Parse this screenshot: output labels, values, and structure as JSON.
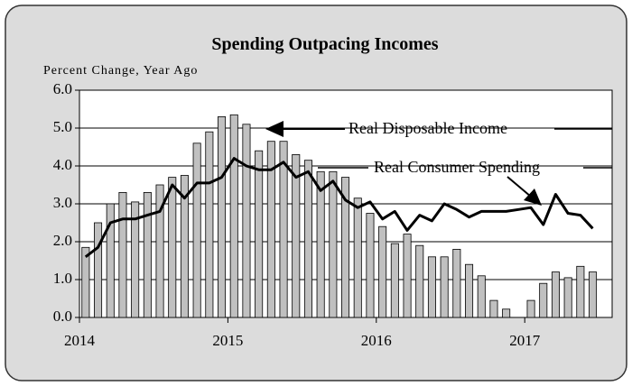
{
  "chart_data": {
    "type": "bar-line",
    "title": "Spending Outpacing Incomes",
    "y_axis_label": "Percent Change, Year Ago",
    "categories": [
      "2014",
      null,
      null,
      null,
      null,
      null,
      null,
      null,
      null,
      null,
      null,
      null,
      "2015",
      null,
      null,
      null,
      null,
      null,
      null,
      null,
      null,
      null,
      null,
      null,
      "2016",
      null,
      null,
      null,
      null,
      null,
      null,
      null,
      null,
      null,
      null,
      null,
      "2017",
      null,
      null,
      null,
      null,
      null
    ],
    "series": [
      {
        "name": "Real Disposable Income",
        "type": "bar",
        "color": "#c0c0c0",
        "values": [
          1.85,
          2.5,
          3.0,
          3.3,
          3.05,
          3.3,
          3.5,
          3.7,
          3.75,
          4.6,
          4.9,
          5.3,
          5.35,
          5.1,
          4.4,
          4.65,
          4.65,
          4.3,
          4.15,
          3.85,
          3.85,
          3.7,
          3.15,
          2.75,
          2.4,
          1.95,
          2.2,
          1.9,
          1.6,
          1.6,
          1.8,
          1.4,
          1.1,
          0.45,
          0.22,
          0.0,
          0.45,
          0.9,
          1.2,
          1.05,
          1.35,
          1.2
        ]
      },
      {
        "name": "Real Consumer Spending",
        "type": "line",
        "color": "#000000",
        "values": [
          1.6,
          1.85,
          2.5,
          2.6,
          2.6,
          2.7,
          2.8,
          3.5,
          3.15,
          3.55,
          3.55,
          3.7,
          4.2,
          4.0,
          3.9,
          3.9,
          4.1,
          3.7,
          3.85,
          3.35,
          3.6,
          3.1,
          2.9,
          3.05,
          2.6,
          2.8,
          2.3,
          2.7,
          2.55,
          3.0,
          2.85,
          2.65,
          2.8,
          2.8,
          2.8,
          2.85,
          2.9,
          2.45,
          3.25,
          2.75,
          2.7,
          2.35
        ]
      }
    ],
    "ylim": [
      0,
      6
    ],
    "yticks": [
      {
        "value": 0,
        "label": "0.0"
      },
      {
        "value": 1,
        "label": "1.0"
      },
      {
        "value": 2,
        "label": "2.0"
      },
      {
        "value": 3,
        "label": "3.0"
      },
      {
        "value": 4,
        "label": "4.0"
      },
      {
        "value": 5,
        "label": "5.0"
      },
      {
        "value": 6,
        "label": "6.0"
      }
    ],
    "grid": true
  }
}
